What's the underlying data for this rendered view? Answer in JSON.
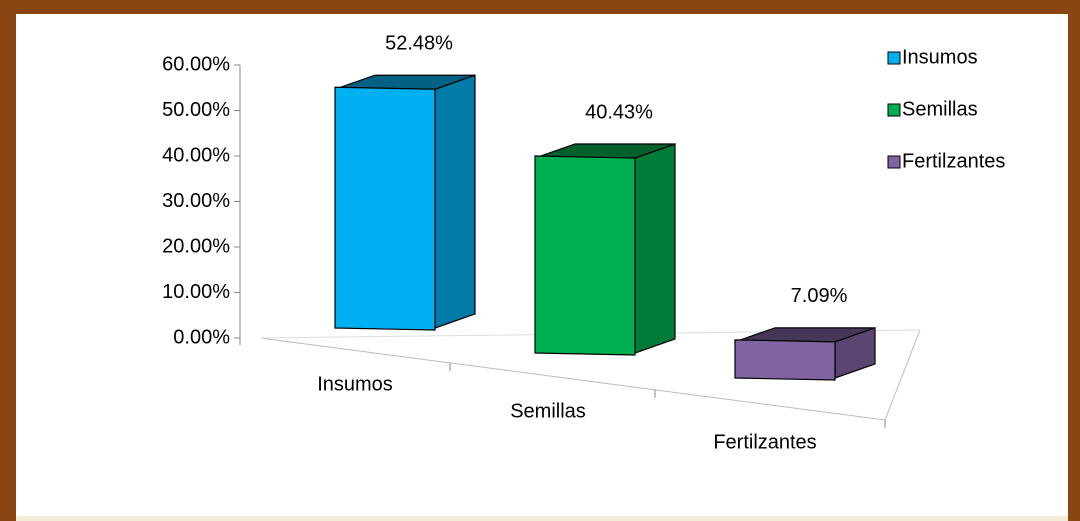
{
  "chart_data": {
    "type": "bar3d",
    "categories": [
      "Insumos",
      "Semillas",
      "Fertilzantes"
    ],
    "series": [
      {
        "name": "Insumos",
        "color": "#00b0f0"
      },
      {
        "name": "Semillas",
        "color": "#00b050"
      },
      {
        "name": "Fertilzantes",
        "color": "#8064a2"
      }
    ],
    "values": [
      52.48,
      40.43,
      7.09
    ],
    "value_labels": [
      "52.48%",
      "40.43%",
      "7.09%"
    ],
    "ylim": [
      0,
      60
    ],
    "yticks": [
      {
        "value": 0,
        "label": "0.00%"
      },
      {
        "value": 10,
        "label": "10.00%"
      },
      {
        "value": 20,
        "label": "20.00%"
      },
      {
        "value": 30,
        "label": "30.00%"
      },
      {
        "value": 40,
        "label": "40.00%"
      },
      {
        "value": 50,
        "label": "50.00%"
      },
      {
        "value": 60,
        "label": "60.00%"
      }
    ],
    "legend": "top-right"
  }
}
